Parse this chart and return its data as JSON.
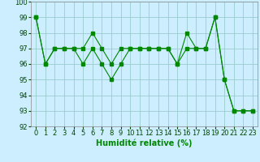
{
  "line1_x": [
    0,
    1,
    2,
    3,
    4,
    5,
    6,
    7,
    8,
    9,
    10,
    11,
    12,
    13,
    14,
    15,
    16,
    17,
    18,
    19,
    20,
    21,
    22,
    23
  ],
  "line1_y": [
    99,
    96,
    97,
    97,
    97,
    97,
    98,
    97,
    96,
    97,
    97,
    97,
    97,
    97,
    97,
    96,
    98,
    97,
    97,
    99,
    95,
    93,
    93,
    93
  ],
  "line2_x": [
    0,
    1,
    2,
    3,
    4,
    5,
    6,
    7,
    8,
    9,
    10,
    11,
    12,
    13,
    14,
    15,
    16,
    17,
    18,
    19,
    20,
    21,
    22,
    23
  ],
  "line2_y": [
    99,
    96,
    97,
    97,
    97,
    96,
    97,
    96,
    95,
    96,
    97,
    97,
    97,
    97,
    97,
    96,
    97,
    97,
    97,
    99,
    95,
    93,
    93,
    93
  ],
  "line_color": "#008800",
  "marker": "s",
  "marker_size": 2.5,
  "xlabel": "Humidité relative (%)",
  "ylim": [
    92,
    100
  ],
  "xlim": [
    -0.5,
    23.5
  ],
  "yticks": [
    92,
    93,
    94,
    95,
    96,
    97,
    98,
    99,
    100
  ],
  "xticks": [
    0,
    1,
    2,
    3,
    4,
    5,
    6,
    7,
    8,
    9,
    10,
    11,
    12,
    13,
    14,
    15,
    16,
    17,
    18,
    19,
    20,
    21,
    22,
    23
  ],
  "bg_color": "#cceeff",
  "grid_color": "#99cccc",
  "tick_fontsize": 6,
  "xlabel_fontsize": 7
}
